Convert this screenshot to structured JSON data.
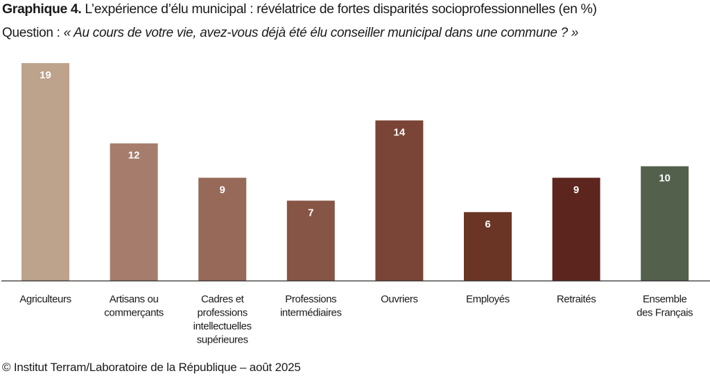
{
  "title": {
    "prefix": "Graphique 4.",
    "text": " L’expérience d’élu municipal : révélatrice de fortes disparités socioprofessionnelles (en %)"
  },
  "question": {
    "prefix": "Question : ",
    "text": "« Au cours de votre vie, avez-vous déjà été élu conseiller municipal dans une commune ? »"
  },
  "credit": "© Institut Terram/Laboratoire de la République – août 2025",
  "chart_data": {
    "type": "bar",
    "title": "L’expérience d’élu municipal : révélatrice de fortes disparités socioprofessionnelles (en %)",
    "categories": [
      [
        "Agriculteurs"
      ],
      [
        "Artisans ou",
        "commerçants"
      ],
      [
        "Cadres et",
        "professions",
        "intellectuelles",
        "supérieures"
      ],
      [
        "Professions",
        "intermédiaires"
      ],
      [
        "Ouvriers"
      ],
      [
        "Employés"
      ],
      [
        "Retraités"
      ],
      [
        "Ensemble",
        "des Français"
      ]
    ],
    "values": [
      19,
      12,
      9,
      7,
      14,
      6,
      9,
      10
    ],
    "colors": [
      "#bda28c",
      "#a67d6d",
      "#966959",
      "#865545",
      "#7a4536",
      "#6a3525",
      "#5c251e",
      "#53604b"
    ],
    "label_color": "#ffffff",
    "ylim": [
      0,
      19
    ],
    "grid": false,
    "legend": "none",
    "xlabel": "",
    "ylabel": ""
  }
}
